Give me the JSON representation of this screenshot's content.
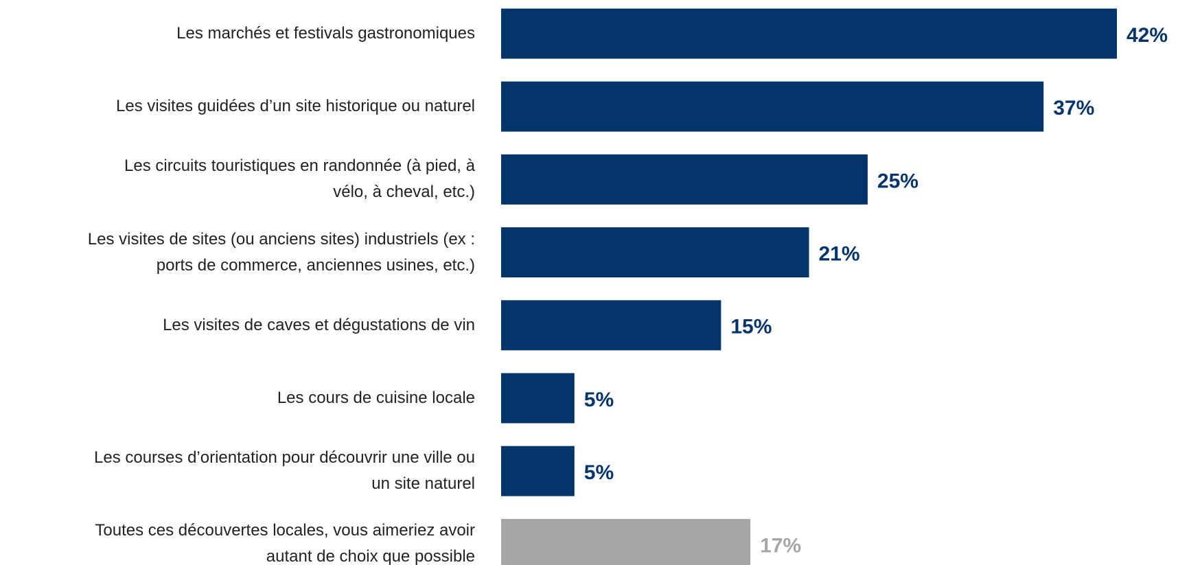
{
  "chart_data": {
    "type": "bar",
    "orientation": "horizontal",
    "categories": [
      "Les marchés et festivals gastronomiques",
      "Les visites guidées d’un site historique ou naturel",
      "Les circuits touristiques en randonnée (à pied, à\nvélo, à cheval, etc.)",
      "Les visites de sites (ou anciens sites) industriels (ex :\nports de commerce, anciennes usines, etc.)",
      "Les visites de caves et dégustations de vin",
      "Les cours de cuisine locale",
      "Les courses d’orientation pour découvrir une ville ou\nun site naturel",
      "Toutes ces découvertes locales, vous aimeriez avoir\nautant de choix que possible"
    ],
    "values": [
      42,
      37,
      25,
      21,
      15,
      5,
      5,
      17
    ],
    "value_labels": [
      "42%",
      "37%",
      "25%",
      "21%",
      "15%",
      "5%",
      "5%",
      "17%"
    ],
    "colors": [
      "#03356a",
      "#03356a",
      "#03356a",
      "#03356a",
      "#03356a",
      "#03356a",
      "#03356a",
      "#a6a6a6"
    ]
  }
}
